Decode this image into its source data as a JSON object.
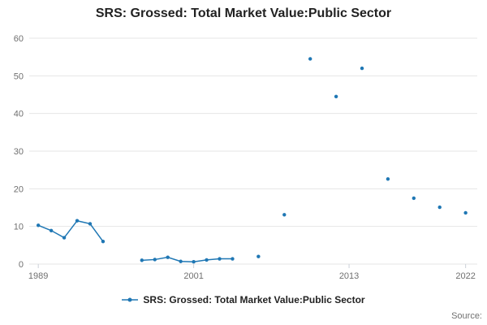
{
  "chart_data": {
    "type": "line",
    "title": "SRS: Grossed: Total Market Value:Public Sector",
    "xlabel": "",
    "ylabel": "",
    "x_ticks": [
      1989,
      2001,
      2013,
      2022
    ],
    "y_ticks": [
      0,
      10,
      20,
      30,
      40,
      50,
      60
    ],
    "x_range": [
      1988.3,
      2022.9
    ],
    "y_range": [
      0,
      60
    ],
    "grid": true,
    "grid_color": "#e6e6e6",
    "tick_color": "#ccd1d9",
    "color": "#1f77b4",
    "legend": {
      "position": "bottom",
      "label": "SRS: Grossed: Total Market Value:Public Sector"
    },
    "series": [
      {
        "name": "SRS: Grossed: Total Market Value:Public Sector",
        "segments": [
          {
            "x": [
              1989,
              1990,
              1991,
              1992,
              1993,
              1994
            ],
            "y": [
              10.3,
              8.9,
              7.0,
              11.5,
              10.7,
              6.0
            ]
          },
          {
            "x": [
              1997,
              1998,
              1999,
              2000,
              2001,
              2002,
              2003,
              2004
            ],
            "y": [
              1.0,
              1.2,
              1.8,
              0.7,
              0.6,
              1.1,
              1.4,
              1.4
            ]
          },
          {
            "x": [
              2006
            ],
            "y": [
              2.0
            ]
          },
          {
            "x": [
              2008
            ],
            "y": [
              13.1
            ]
          },
          {
            "x": [
              2010
            ],
            "y": [
              54.5
            ]
          },
          {
            "x": [
              2012
            ],
            "y": [
              44.5
            ]
          },
          {
            "x": [
              2014
            ],
            "y": [
              52.0
            ]
          },
          {
            "x": [
              2016
            ],
            "y": [
              22.6
            ]
          },
          {
            "x": [
              2018
            ],
            "y": [
              17.5
            ]
          },
          {
            "x": [
              2020
            ],
            "y": [
              15.1
            ]
          },
          {
            "x": [
              2022
            ],
            "y": [
              13.6
            ]
          }
        ]
      }
    ]
  },
  "footer": {
    "source": "Source:"
  }
}
